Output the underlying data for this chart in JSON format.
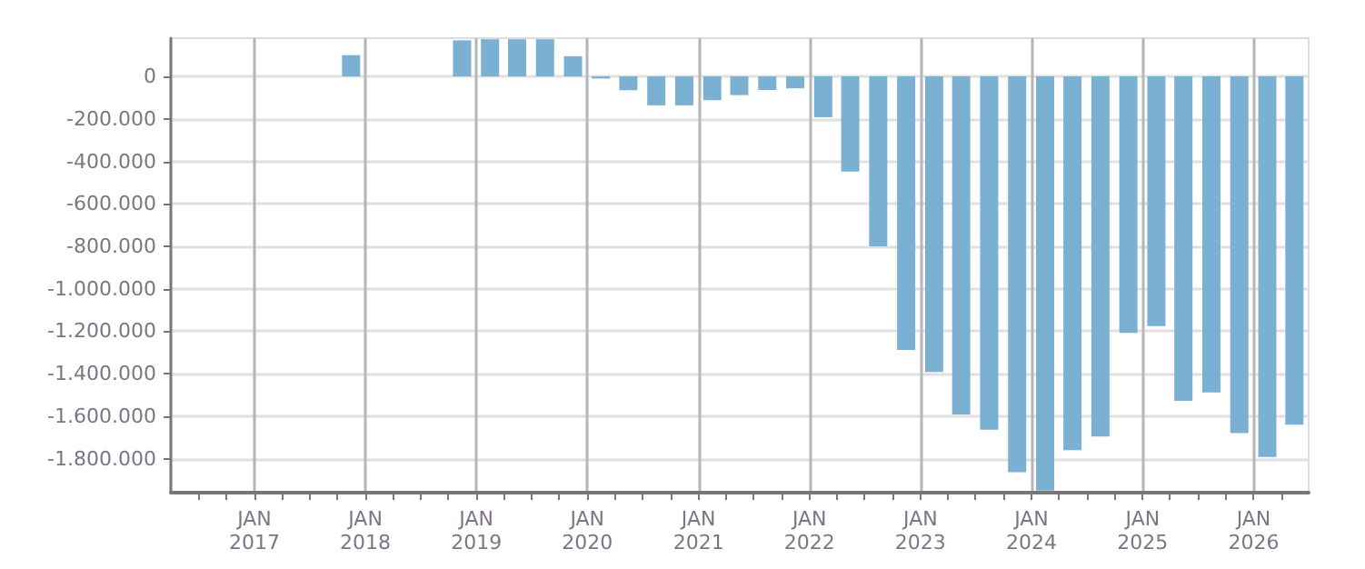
{
  "chart_data": {
    "type": "bar",
    "x": [
      "2017-11-15",
      "2018-11-15",
      "2019-02-15",
      "2019-05-15",
      "2019-08-15",
      "2019-11-15",
      "2020-02-15",
      "2020-05-15",
      "2020-08-15",
      "2020-11-15",
      "2021-02-15",
      "2021-05-15",
      "2021-08-15",
      "2021-11-15",
      "2022-02-15",
      "2022-05-15",
      "2022-08-15",
      "2022-11-15",
      "2023-02-15",
      "2023-05-15",
      "2023-08-15",
      "2023-11-15",
      "2024-02-15",
      "2024-05-15",
      "2024-08-15",
      "2024-11-15",
      "2025-02-15",
      "2025-05-15",
      "2025-08-15",
      "2025-11-15",
      "2026-02-15",
      "2026-05-15"
    ],
    "values": [
      100000,
      170000,
      175000,
      175000,
      175000,
      95000,
      -10000,
      -65000,
      -136000,
      -136000,
      -112000,
      -88000,
      -64000,
      -56000,
      -192000,
      -448000,
      -800000,
      -1288000,
      -1392000,
      -1592000,
      -1664000,
      -1864000,
      -1950000,
      -1760000,
      -1696000,
      -1208000,
      -1176000,
      -1528000,
      -1488000,
      -1680000,
      -1792000,
      -1640000
    ],
    "color": "#7ab1d3",
    "xlim": [
      "2016-04-01",
      "2026-07-01"
    ],
    "xticks": [
      {
        "value": "2016-07-01",
        "label": null
      },
      {
        "value": "2016-10-01",
        "label": null
      },
      {
        "value": "2017-01-01",
        "label": "JAN\n2017"
      },
      {
        "value": "2017-04-01",
        "label": null
      },
      {
        "value": "2017-07-01",
        "label": null
      },
      {
        "value": "2017-10-01",
        "label": null
      },
      {
        "value": "2018-01-01",
        "label": "JAN\n2018"
      },
      {
        "value": "2018-04-01",
        "label": null
      },
      {
        "value": "2018-07-01",
        "label": null
      },
      {
        "value": "2018-10-01",
        "label": null
      },
      {
        "value": "2019-01-01",
        "label": "JAN\n2019"
      },
      {
        "value": "2019-04-01",
        "label": null
      },
      {
        "value": "2019-07-01",
        "label": null
      },
      {
        "value": "2019-10-01",
        "label": null
      },
      {
        "value": "2020-01-01",
        "label": "JAN\n2020"
      },
      {
        "value": "2020-04-01",
        "label": null
      },
      {
        "value": "2020-07-01",
        "label": null
      },
      {
        "value": "2020-10-01",
        "label": null
      },
      {
        "value": "2021-01-01",
        "label": "JAN\n2021"
      },
      {
        "value": "2021-04-01",
        "label": null
      },
      {
        "value": "2021-07-01",
        "label": null
      },
      {
        "value": "2021-10-01",
        "label": null
      },
      {
        "value": "2022-01-01",
        "label": "JAN\n2022"
      },
      {
        "value": "2022-04-01",
        "label": null
      },
      {
        "value": "2022-07-01",
        "label": null
      },
      {
        "value": "2022-10-01",
        "label": null
      },
      {
        "value": "2023-01-01",
        "label": "JAN\n2023"
      },
      {
        "value": "2023-04-01",
        "label": null
      },
      {
        "value": "2023-07-01",
        "label": null
      },
      {
        "value": "2023-10-01",
        "label": null
      },
      {
        "value": "2024-01-01",
        "label": "JAN\n2024"
      },
      {
        "value": "2024-04-01",
        "label": null
      },
      {
        "value": "2024-07-01",
        "label": null
      },
      {
        "value": "2024-10-01",
        "label": null
      },
      {
        "value": "2025-01-01",
        "label": "JAN\n2025"
      },
      {
        "value": "2025-04-01",
        "label": null
      },
      {
        "value": "2025-07-01",
        "label": null
      },
      {
        "value": "2025-10-01",
        "label": null
      },
      {
        "value": "2026-01-01",
        "label": "JAN\n2026"
      },
      {
        "value": "2026-04-01",
        "label": null
      }
    ],
    "ylim": [
      -1960000,
      180000
    ],
    "yticks": [
      0,
      {
        "value": -200000,
        "label": "-200.000"
      },
      {
        "value": -400000,
        "label": "-400.000"
      },
      {
        "value": -600000,
        "label": "-600.000"
      },
      {
        "value": -800000,
        "label": "-800.000"
      },
      {
        "value": -1000000,
        "label": "-1.000.000"
      },
      {
        "value": -1200000,
        "label": "-1.200.000"
      },
      {
        "value": -1400000,
        "label": "-1.400.000"
      },
      {
        "value": -1600000,
        "label": "-1.600.000"
      },
      {
        "value": -1800000,
        "label": "-1.800.000"
      }
    ],
    "grid": true
  }
}
